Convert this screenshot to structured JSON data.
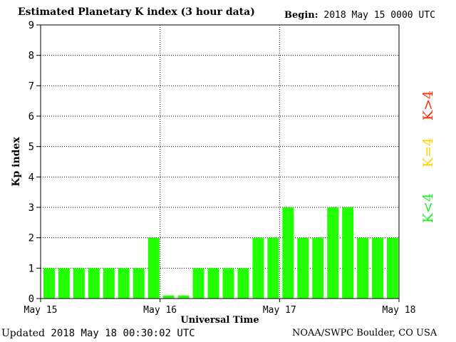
{
  "header": {
    "title": "Estimated Planetary K index (3 hour data)",
    "begin_label": "Begin:",
    "begin_value": "2018 May 15 0000 UTC"
  },
  "footer": {
    "updated_label": "Updated",
    "updated_value": "2018 May 18 00:30:02 UTC",
    "credit": "NOAA/SWPC Boulder, CO USA"
  },
  "legend": [
    {
      "label": "K>4",
      "color": "#ff2a00"
    },
    {
      "label": "K=4",
      "color": "#ffd200"
    },
    {
      "label": "K<4",
      "color": "#22ee22"
    }
  ],
  "chart_data": {
    "type": "bar",
    "title": "Estimated Planetary K index (3 hour data)",
    "xlabel": "Universal Time",
    "ylabel": "Kp index",
    "ylim": [
      0,
      9
    ],
    "yticks": [
      "0",
      "1",
      "2",
      "3",
      "4",
      "5",
      "6",
      "7",
      "8",
      "9"
    ],
    "xticks": [
      "May 15",
      "May 16",
      "May 17",
      "May 18"
    ],
    "grid": true,
    "bar_color": "#22ff00",
    "values": [
      1,
      1,
      1,
      1,
      1,
      1,
      1,
      2,
      0.1,
      0.1,
      1,
      1,
      1,
      1,
      2,
      2,
      3,
      2,
      2,
      3,
      3,
      2,
      2,
      2
    ]
  }
}
